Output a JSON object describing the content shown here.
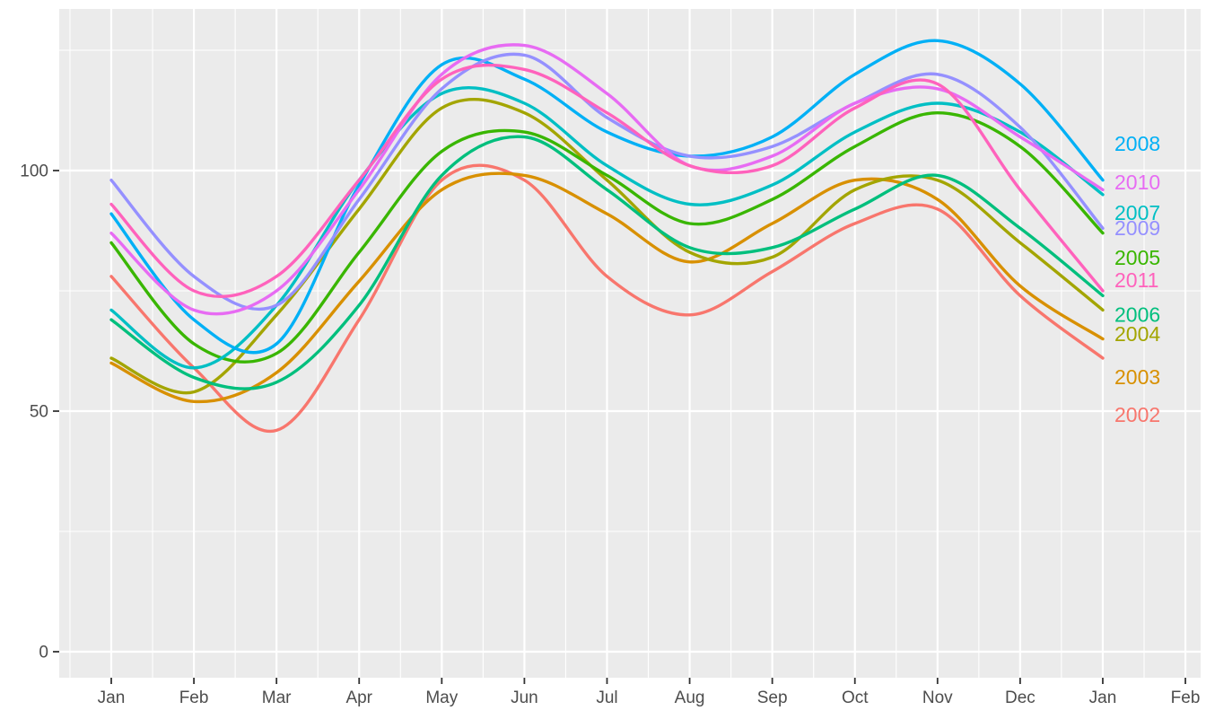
{
  "chart_data": {
    "type": "line",
    "title": "",
    "xlabel": "",
    "ylabel": "",
    "x_tick_labels": [
      "Jan",
      "Feb",
      "Mar",
      "Apr",
      "May",
      "Jun",
      "Jul",
      "Aug",
      "Sep",
      "Oct",
      "Nov",
      "Dec",
      "Jan",
      "Feb"
    ],
    "y_tick_labels": [
      "0",
      "50",
      "100"
    ],
    "y_major_ticks": [
      0,
      50,
      100
    ],
    "y_minor_ticks": [
      25,
      75,
      125
    ],
    "ylim": [
      0,
      133
    ],
    "grid": "on",
    "legend_position": "direct-labels-right",
    "panel_background": "#EBEBEB",
    "grid_color": "#FFFFFF",
    "axis_text_color": "#4D4D4D",
    "tick_mark_color": "#333333",
    "series": [
      {
        "name": "2002",
        "color": "#F8766D",
        "label_y_value": 49.3,
        "values": [
          78,
          59,
          46,
          69,
          98,
          98,
          78,
          70,
          79,
          89,
          92,
          74,
          61
        ]
      },
      {
        "name": "2003",
        "color": "#D89000",
        "label_y_value": 57.1,
        "values": [
          60,
          52,
          58,
          77,
          96,
          99,
          91,
          81,
          89,
          98,
          94,
          76,
          65
        ]
      },
      {
        "name": "2004",
        "color": "#A3A500",
        "label_y_value": 66.0,
        "values": [
          61,
          54,
          70,
          92,
          113,
          112,
          98,
          83,
          82,
          96,
          98,
          85,
          71
        ]
      },
      {
        "name": "2005",
        "color": "#39B600",
        "label_y_value": 81.9,
        "values": [
          85,
          64,
          62,
          83,
          104,
          108,
          99,
          89,
          94,
          105,
          112,
          105,
          87
        ]
      },
      {
        "name": "2006",
        "color": "#00BF7D",
        "label_y_value": 70.1,
        "values": [
          69,
          57,
          56,
          72,
          99,
          107,
          96,
          84,
          84,
          92,
          99,
          88,
          74
        ]
      },
      {
        "name": "2007",
        "color": "#00BFC4",
        "label_y_value": 91.2,
        "values": [
          71,
          59,
          72,
          98,
          116,
          114,
          101,
          93,
          97,
          108,
          114,
          108,
          95
        ]
      },
      {
        "name": "2008",
        "color": "#00B0F6",
        "label_y_value": 105.6,
        "values": [
          91,
          69,
          64,
          97,
          122,
          119,
          108,
          103,
          107,
          120,
          127,
          118,
          98
        ]
      },
      {
        "name": "2009",
        "color": "#9590FF",
        "label_y_value": 88.1,
        "values": [
          98,
          78,
          72,
          94,
          117,
          124,
          111,
          103,
          105,
          114,
          120,
          109,
          88
        ]
      },
      {
        "name": "2010",
        "color": "#E76BF3",
        "label_y_value": 97.6,
        "values": [
          87,
          71,
          75,
          96,
          120,
          126,
          116,
          101,
          103,
          114,
          117,
          107,
          96
        ]
      },
      {
        "name": "2011",
        "color": "#FF62BC",
        "label_y_value": 77.2,
        "values": [
          93,
          75,
          78,
          98,
          119,
          121,
          112,
          101,
          101,
          113,
          118,
          96,
          75
        ]
      }
    ]
  }
}
